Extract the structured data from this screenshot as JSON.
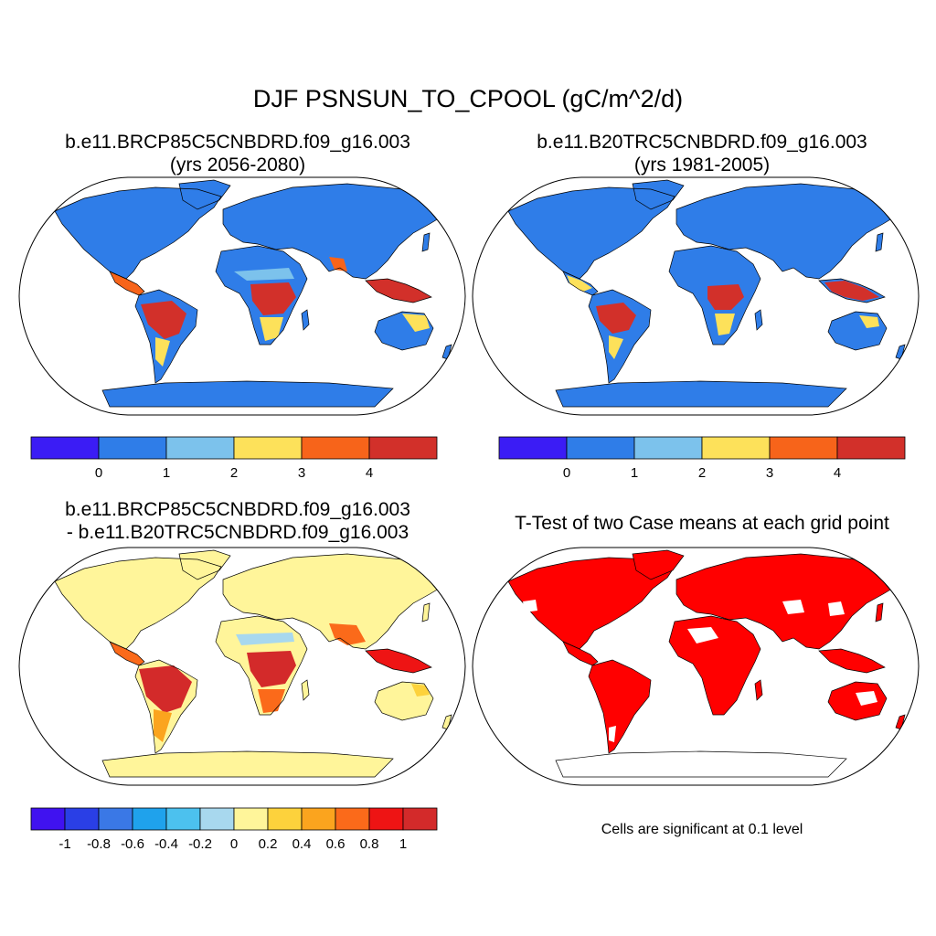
{
  "main_title": "DJF PSNSUN_TO_CPOOL (gC/m^2/d)",
  "panels": [
    {
      "id": "case1",
      "title_line1": "b.e11.BRCP85C5CNBDRD.f09_g16.003",
      "title_line2": "(yrs 2056-2080)"
    },
    {
      "id": "case2",
      "title_line1": "b.e11.B20TRC5CNBDRD.f09_g16.003",
      "title_line2": "(yrs 1981-2005)"
    },
    {
      "id": "difference",
      "title_line1": "b.e11.BRCP85C5CNBDRD.f09_g16.003",
      "title_line2": "- b.e11.B20TRC5CNBDRD.f09_g16.003"
    },
    {
      "id": "ttest",
      "title_line1": "T-Test of two Case means at each grid point",
      "title_line2": ""
    }
  ],
  "colorbars": {
    "mean": {
      "colors": [
        "#3b1cf5",
        "#2f7de8",
        "#7cc2ec",
        "#fde15a",
        "#f7641a",
        "#d2302a"
      ],
      "labels": [
        "0",
        "1",
        "2",
        "3",
        "4"
      ]
    },
    "diff": {
      "colors": [
        "#4012f0",
        "#2a3fe6",
        "#3a78e6",
        "#1fa2ec",
        "#4cc1ee",
        "#a8d8ee",
        "#fff59a",
        "#fdd23c",
        "#fba41e",
        "#fb6a1a",
        "#ee1414",
        "#d32a2a"
      ],
      "labels": [
        "-1",
        "-0.8",
        "-0.6",
        "-0.4",
        "-0.2",
        "0",
        "0.2",
        "0.4",
        "0.6",
        "0.8",
        "1"
      ]
    }
  },
  "significance_note": "Cells are significant at 0.1 level",
  "significance_color": "#ff0000"
}
